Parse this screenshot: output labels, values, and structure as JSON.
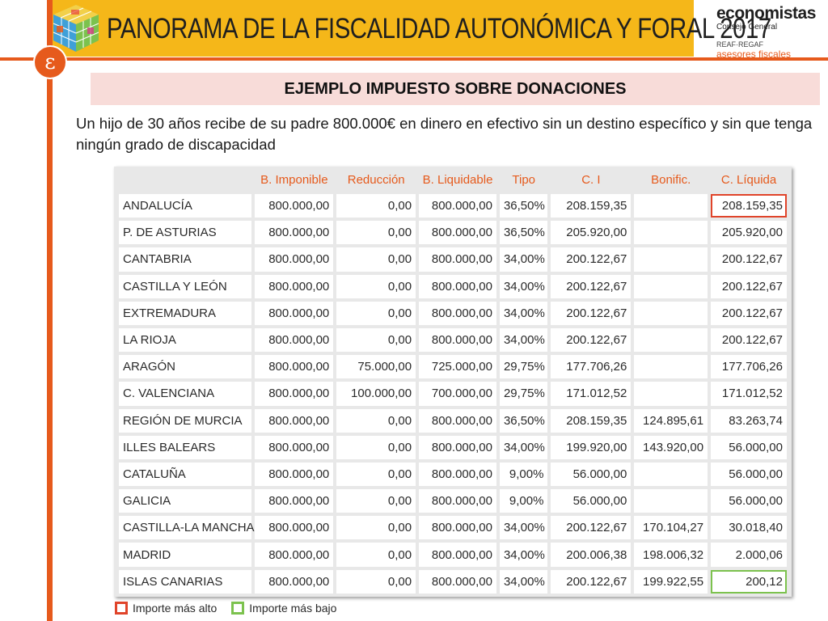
{
  "header": {
    "title": "PANORAMA DE LA FISCALIDAD AUTONÓMICA Y FORAL 2017",
    "logo_letter": "ɛ",
    "brand": {
      "name": "economistas",
      "sub": "Consejo General",
      "org": "REAF·REGAF",
      "tag": "asesores fiscales"
    }
  },
  "section": {
    "title": "EJEMPLO IMPUESTO SOBRE DONACIONES",
    "intro": "Un hijo de 30 años recibe de su padre 800.000€ en dinero en efectivo sin un destino específico y sin que tenga ningún grado de discapacidad"
  },
  "table": {
    "columns": [
      "",
      "B. Imponible",
      "Reducción",
      "B. Liquidable",
      "Tipo",
      "C. I",
      "Bonific.",
      "C. Líquida"
    ],
    "rows": [
      [
        "ANDALUCÍA",
        "800.000,00",
        "0,00",
        "800.000,00",
        "36,50%",
        "208.159,35",
        "",
        "208.159,35"
      ],
      [
        "P. DE ASTURIAS",
        "800.000,00",
        "0,00",
        "800.000,00",
        "36,50%",
        "205.920,00",
        "",
        "205.920,00"
      ],
      [
        "CANTABRIA",
        "800.000,00",
        "0,00",
        "800.000,00",
        "34,00%",
        "200.122,67",
        "",
        "200.122,67"
      ],
      [
        "CASTILLA Y LEÓN",
        "800.000,00",
        "0,00",
        "800.000,00",
        "34,00%",
        "200.122,67",
        "",
        "200.122,67"
      ],
      [
        "EXTREMADURA",
        "800.000,00",
        "0,00",
        "800.000,00",
        "34,00%",
        "200.122,67",
        "",
        "200.122,67"
      ],
      [
        "LA RIOJA",
        "800.000,00",
        "0,00",
        "800.000,00",
        "34,00%",
        "200.122,67",
        "",
        "200.122,67"
      ],
      [
        "ARAGÓN",
        "800.000,00",
        "75.000,00",
        "725.000,00",
        "29,75%",
        "177.706,26",
        "",
        "177.706,26"
      ],
      [
        "C. VALENCIANA",
        "800.000,00",
        "100.000,00",
        "700.000,00",
        "29,75%",
        "171.012,52",
        "",
        "171.012,52"
      ],
      [
        "REGIÓN DE MURCIA",
        "800.000,00",
        "0,00",
        "800.000,00",
        "36,50%",
        "208.159,35",
        "124.895,61",
        "83.263,74"
      ],
      [
        "ILLES BALEARS",
        "800.000,00",
        "0,00",
        "800.000,00",
        "34,00%",
        "199.920,00",
        "143.920,00",
        "56.000,00"
      ],
      [
        "CATALUÑA",
        "800.000,00",
        "0,00",
        "800.000,00",
        "9,00%",
        "56.000,00",
        "",
        "56.000,00"
      ],
      [
        "GALICIA",
        "800.000,00",
        "0,00",
        "800.000,00",
        "9,00%",
        "56.000,00",
        "",
        "56.000,00"
      ],
      [
        "CASTILLA-LA MANCHA",
        "800.000,00",
        "0,00",
        "800.000,00",
        "34,00%",
        "200.122,67",
        "170.104,27",
        "30.018,40"
      ],
      [
        "MADRID",
        "800.000,00",
        "0,00",
        "800.000,00",
        "34,00%",
        "200.006,38",
        "198.006,32",
        "2.000,06"
      ],
      [
        "ISLAS CANARIAS",
        "800.000,00",
        "0,00",
        "800.000,00",
        "34,00%",
        "200.122,67",
        "199.922,55",
        "200,12"
      ]
    ],
    "highest_row": 0,
    "lowest_row": 14
  },
  "legend": {
    "high_label": "Importe más alto",
    "low_label": "Importe más bajo"
  },
  "colors": {
    "banner": "#f5b719",
    "accent": "#e65a1c",
    "high": "#e0442a",
    "low": "#7cc24e",
    "section_bg": "#f8dcd9"
  }
}
